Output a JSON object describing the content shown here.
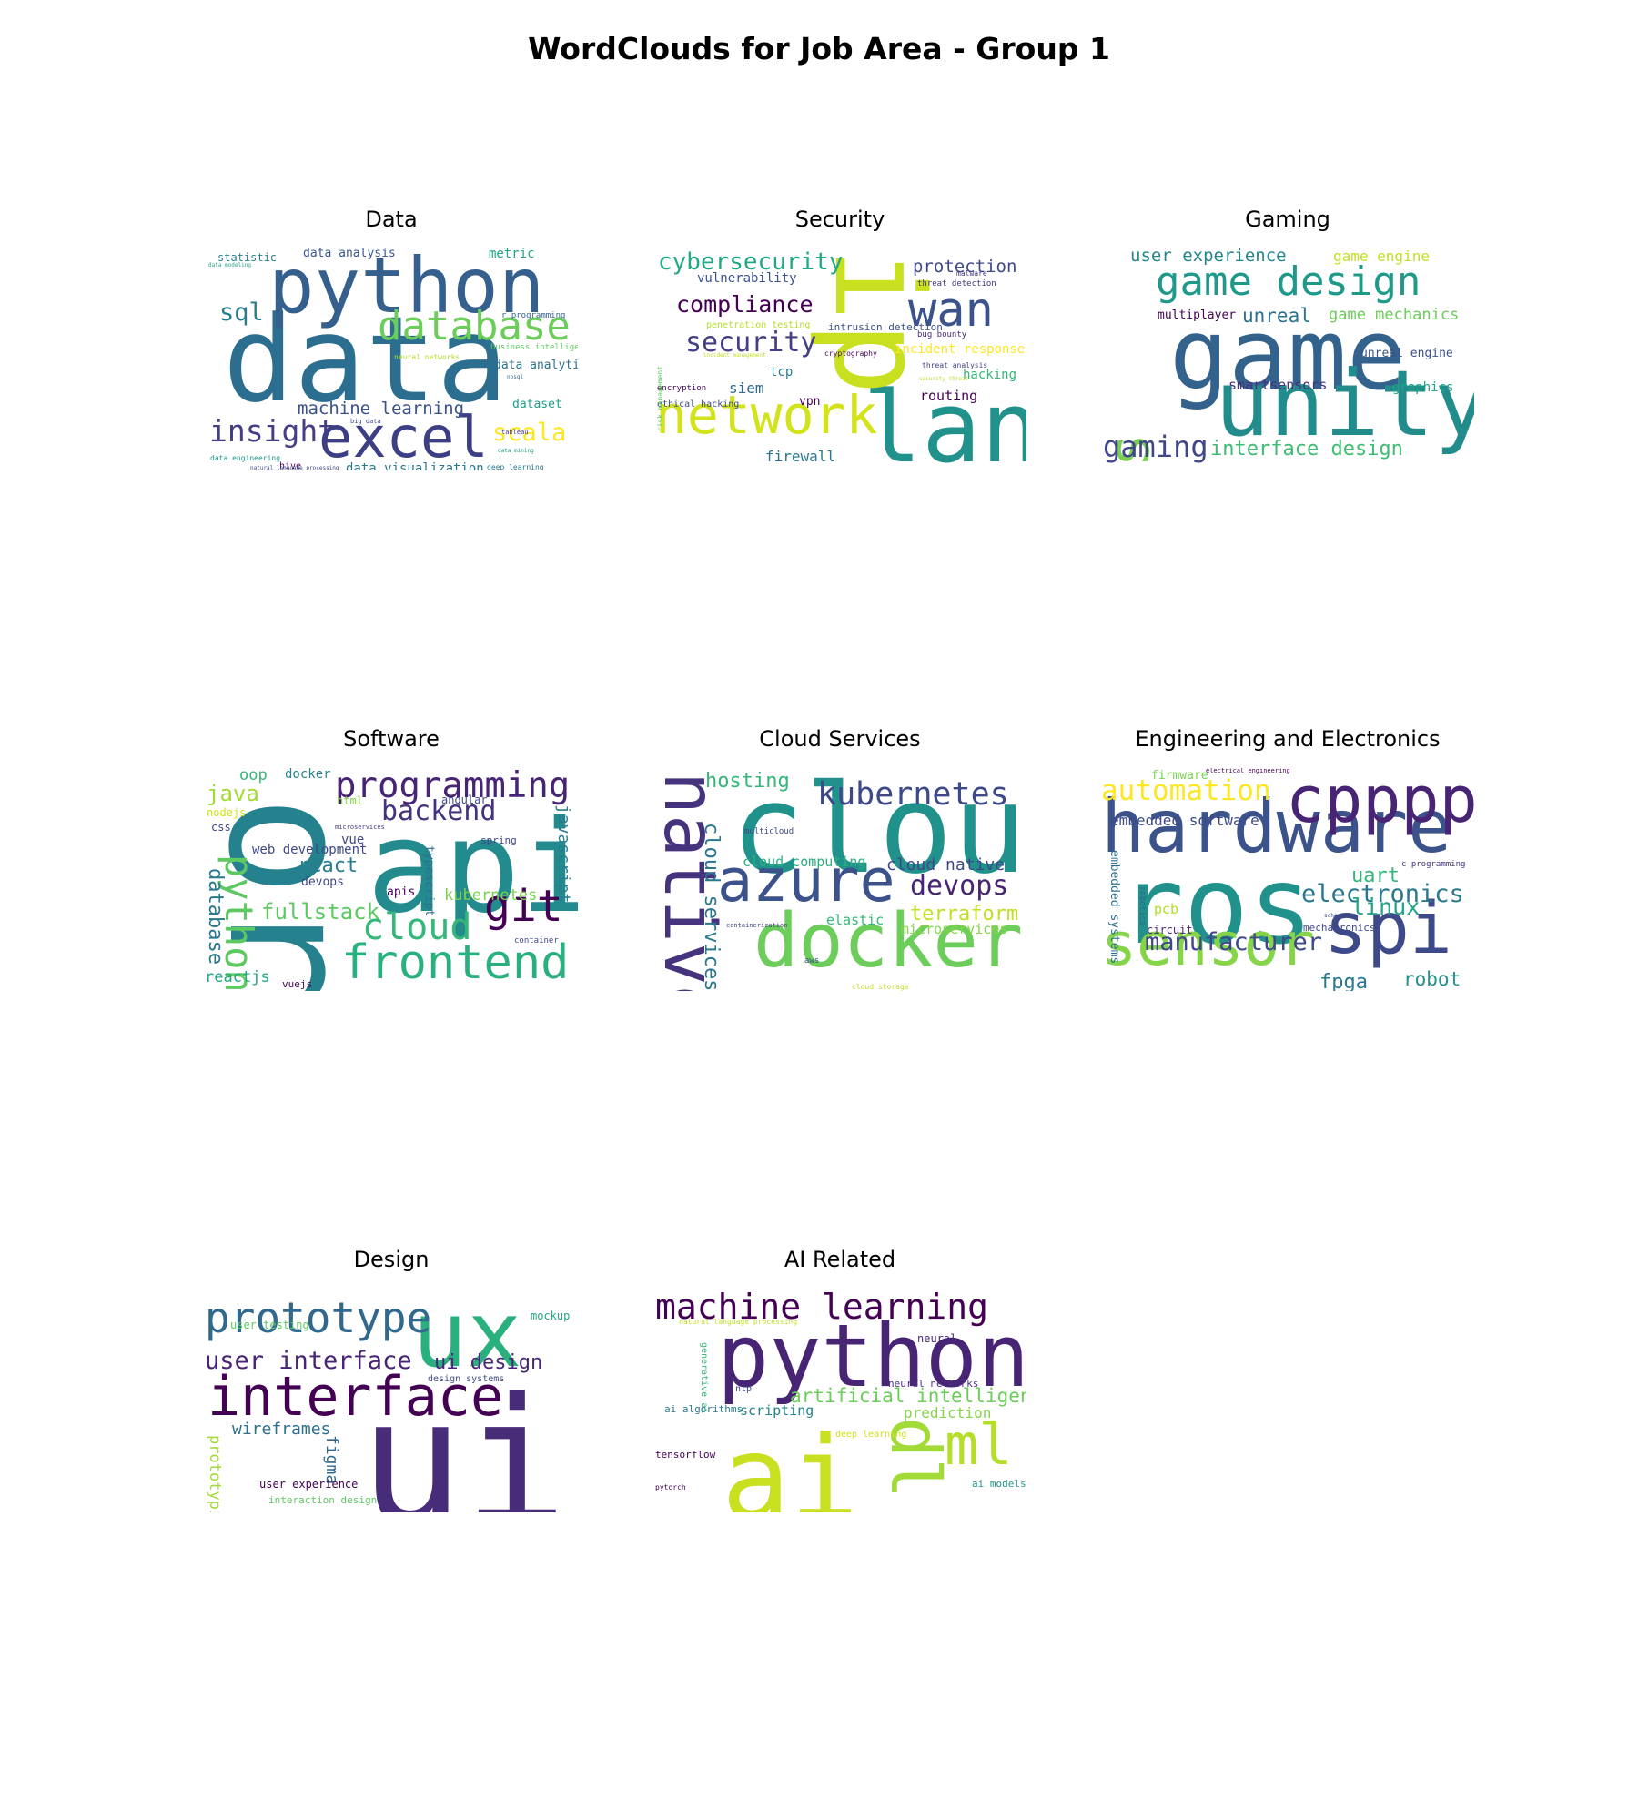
{
  "title": "WordClouds for Job Area - Group 1",
  "chart_data": [
    {
      "type": "wordcloud",
      "title": "Data",
      "words": [
        {
          "text": "data",
          "weight": 1.0,
          "color": "#2c6e8f"
        },
        {
          "text": "python",
          "weight": 0.72,
          "color": "#355f8d"
        },
        {
          "text": "excel",
          "weight": 0.55,
          "color": "#3d3f85"
        },
        {
          "text": "database",
          "weight": 0.42,
          "color": "#6ccd5a"
        },
        {
          "text": "insight",
          "weight": 0.3,
          "color": "#433e85"
        },
        {
          "text": "sql",
          "weight": 0.26,
          "color": "#287d8e"
        },
        {
          "text": "scala",
          "weight": 0.26,
          "color": "#fde725"
        },
        {
          "text": "machine learning",
          "weight": 0.2,
          "color": "#3b528b"
        },
        {
          "text": "data visualization",
          "weight": 0.13,
          "color": "#2a788e"
        },
        {
          "text": "data analysis",
          "weight": 0.12,
          "color": "#39568c"
        },
        {
          "text": "statistic",
          "weight": 0.11,
          "color": "#25858e"
        },
        {
          "text": "metric",
          "weight": 0.11,
          "color": "#20a386"
        },
        {
          "text": "data analytics",
          "weight": 0.11,
          "color": "#2d708e"
        },
        {
          "text": "dataset",
          "weight": 0.1,
          "color": "#1f9e89"
        },
        {
          "text": "business intelligence",
          "weight": 0.06,
          "color": "#5ec962"
        },
        {
          "text": "r programming",
          "weight": 0.06,
          "color": "#33638d"
        },
        {
          "text": "neural networks",
          "weight": 0.05,
          "color": "#b5de2b"
        },
        {
          "text": "data engineering",
          "weight": 0.05,
          "color": "#1f968b"
        },
        {
          "text": "hive",
          "weight": 0.06,
          "color": "#440154"
        },
        {
          "text": "deep learning",
          "weight": 0.05,
          "color": "#2a788e"
        },
        {
          "text": "data modeling",
          "weight": 0.04,
          "color": "#22a884"
        },
        {
          "text": "natural language processing",
          "weight": 0.04,
          "color": "#3e4989"
        },
        {
          "text": "tableau",
          "weight": 0.04,
          "color": "#46337e"
        },
        {
          "text": "data mining",
          "weight": 0.04,
          "color": "#1fa187"
        },
        {
          "text": "big data",
          "weight": 0.04,
          "color": "#404688"
        },
        {
          "text": "nosql",
          "weight": 0.04,
          "color": "#31688e"
        }
      ]
    },
    {
      "type": "wordcloud",
      "title": "Security",
      "words": [
        {
          "text": "lan",
          "weight": 1.0,
          "color": "#21918c"
        },
        {
          "text": "ip",
          "weight": 0.95,
          "color": "#c8e020"
        },
        {
          "text": "network",
          "weight": 0.62,
          "color": "#d2e21b"
        },
        {
          "text": "wan",
          "weight": 0.55,
          "color": "#3b528b"
        },
        {
          "text": "security",
          "weight": 0.33,
          "color": "#433e85"
        },
        {
          "text": "compliance",
          "weight": 0.3,
          "color": "#440154"
        },
        {
          "text": "cybersecurity",
          "weight": 0.3,
          "color": "#22a884"
        },
        {
          "text": "protection",
          "weight": 0.22,
          "color": "#3e4989"
        },
        {
          "text": "firewall",
          "weight": 0.18,
          "color": "#2a788e"
        },
        {
          "text": "siem",
          "weight": 0.18,
          "color": "#31688e"
        },
        {
          "text": "routing",
          "weight": 0.17,
          "color": "#440154"
        },
        {
          "text": "vulnerability",
          "weight": 0.15,
          "color": "#3b528b"
        },
        {
          "text": "hacking",
          "weight": 0.14,
          "color": "#35b779"
        },
        {
          "text": "incident response",
          "weight": 0.13,
          "color": "#fde725"
        },
        {
          "text": "tcp",
          "weight": 0.14,
          "color": "#287d8e"
        },
        {
          "text": "vpn",
          "weight": 0.13,
          "color": "#440154"
        },
        {
          "text": "intrusion detection",
          "weight": 0.1,
          "color": "#3b528b"
        },
        {
          "text": "penetration testing",
          "weight": 0.09,
          "color": "#b5de2b"
        },
        {
          "text": "ethical hacking",
          "weight": 0.08,
          "color": "#3e4989"
        },
        {
          "text": "encryption",
          "weight": 0.08,
          "color": "#440154"
        },
        {
          "text": "threat detection",
          "weight": 0.07,
          "color": "#46337e"
        },
        {
          "text": "bug bounty",
          "weight": 0.07,
          "color": "#482878"
        },
        {
          "text": "malware",
          "weight": 0.06,
          "color": "#443983"
        },
        {
          "text": "threat analysis",
          "weight": 0.06,
          "color": "#414487"
        },
        {
          "text": "cryptography",
          "weight": 0.06,
          "color": "#450457"
        },
        {
          "text": "risk management",
          "weight": 0.06,
          "color": "#5ec962"
        },
        {
          "text": "incident management",
          "weight": 0.05,
          "color": "#c2df23"
        },
        {
          "text": "security threat",
          "weight": 0.05,
          "color": "#b8de29"
        }
      ]
    },
    {
      "type": "wordcloud",
      "title": "Gaming",
      "words": [
        {
          "text": "game",
          "weight": 1.0,
          "color": "#33638d"
        },
        {
          "text": "unity",
          "weight": 0.9,
          "color": "#228c8d"
        },
        {
          "text": "games",
          "weight": 0.55,
          "color": "#7ad151"
        },
        {
          "text": "game design",
          "weight": 0.48,
          "color": "#1f9a8a"
        },
        {
          "text": "gaming",
          "weight": 0.3,
          "color": "#404688"
        },
        {
          "text": "interface design",
          "weight": 0.22,
          "color": "#3fbc73"
        },
        {
          "text": "unreal",
          "weight": 0.2,
          "color": "#2d708e"
        },
        {
          "text": "user experience",
          "weight": 0.18,
          "color": "#25858e"
        },
        {
          "text": "game mechanics",
          "weight": 0.16,
          "color": "#6ccd5a"
        },
        {
          "text": "game engine",
          "weight": 0.14,
          "color": "#c2df23"
        },
        {
          "text": "smartsensors",
          "weight": 0.15,
          "color": "#46337e"
        },
        {
          "text": "graphics",
          "weight": 0.14,
          "color": "#20a386"
        },
        {
          "text": "unreal engine",
          "weight": 0.13,
          "color": "#3b528b"
        },
        {
          "text": "multiplayer",
          "weight": 0.13,
          "color": "#440154"
        }
      ]
    },
    {
      "type": "wordcloud",
      "title": "Software",
      "words": [
        {
          "text": "orm",
          "weight": 1.0,
          "color": "#26818e"
        },
        {
          "text": "api",
          "weight": 0.95,
          "color": "#238a8d"
        },
        {
          "text": "frontend",
          "weight": 0.5,
          "color": "#2ab07f"
        },
        {
          "text": "programming",
          "weight": 0.4,
          "color": "#482475"
        },
        {
          "text": "git",
          "weight": 0.45,
          "color": "#440154"
        },
        {
          "text": "python",
          "weight": 0.45,
          "color": "#5ec962"
        },
        {
          "text": "cloud",
          "weight": 0.38,
          "color": "#35b779"
        },
        {
          "text": "backend",
          "weight": 0.32,
          "color": "#46337e"
        },
        {
          "text": "fullstack",
          "weight": 0.26,
          "color": "#5ec962"
        },
        {
          "text": "java",
          "weight": 0.25,
          "color": "#a2da37"
        },
        {
          "text": "database",
          "weight": 0.25,
          "color": "#2a788e"
        },
        {
          "text": "react",
          "weight": 0.24,
          "color": "#287d8e"
        },
        {
          "text": "javascript",
          "weight": 0.2,
          "color": "#287d8e"
        },
        {
          "text": "kubernetes",
          "weight": 0.18,
          "color": "#7ad151"
        },
        {
          "text": "web development",
          "weight": 0.15,
          "color": "#3e4989"
        },
        {
          "text": "reactjs",
          "weight": 0.17,
          "color": "#22a884"
        },
        {
          "text": "oop",
          "weight": 0.17,
          "color": "#35b779"
        },
        {
          "text": "typescript",
          "weight": 0.14,
          "color": "#2d708e"
        },
        {
          "text": "docker",
          "weight": 0.14,
          "color": "#25858e"
        },
        {
          "text": "vue",
          "weight": 0.14,
          "color": "#3e4989"
        },
        {
          "text": "apis",
          "weight": 0.13,
          "color": "#450457"
        },
        {
          "text": "devops",
          "weight": 0.13,
          "color": "#404688"
        },
        {
          "text": "html",
          "weight": 0.12,
          "color": "#86d549"
        },
        {
          "text": "css",
          "weight": 0.12,
          "color": "#404688"
        },
        {
          "text": "angular",
          "weight": 0.11,
          "color": "#3e4989"
        },
        {
          "text": "spring",
          "weight": 0.1,
          "color": "#3e4989"
        },
        {
          "text": "nodejs",
          "weight": 0.11,
          "color": "#d2e21b"
        },
        {
          "text": "vuejs",
          "weight": 0.11,
          "color": "#440154"
        },
        {
          "text": "container",
          "weight": 0.08,
          "color": "#3e4989"
        },
        {
          "text": "microservices",
          "weight": 0.06,
          "color": "#443983"
        }
      ]
    },
    {
      "type": "wordcloud",
      "title": "Cloud Services",
      "words": [
        {
          "text": "cloud",
          "weight": 1.0,
          "color": "#21918c"
        },
        {
          "text": "docker",
          "weight": 0.85,
          "color": "#6ccd5a"
        },
        {
          "text": "azure",
          "weight": 0.7,
          "color": "#3b528b"
        },
        {
          "text": "native",
          "weight": 0.68,
          "color": "#46337e"
        },
        {
          "text": "kubernetes",
          "weight": 0.34,
          "color": "#3e4989"
        },
        {
          "text": "devops",
          "weight": 0.3,
          "color": "#482475"
        },
        {
          "text": "cloud services",
          "weight": 0.22,
          "color": "#2a788e"
        },
        {
          "text": "terraform",
          "weight": 0.24,
          "color": "#c2df23"
        },
        {
          "text": "hosting",
          "weight": 0.22,
          "color": "#35b779"
        },
        {
          "text": "cloud native",
          "weight": 0.2,
          "color": "#3e4989"
        },
        {
          "text": "cloud computing",
          "weight": 0.16,
          "color": "#2ab07f"
        },
        {
          "text": "elastic",
          "weight": 0.15,
          "color": "#35b779"
        },
        {
          "text": "microservices",
          "weight": 0.15,
          "color": "#86d549"
        },
        {
          "text": "multicloud",
          "weight": 0.07,
          "color": "#3e4989"
        },
        {
          "text": "aws",
          "weight": 0.07,
          "color": "#3b528b"
        },
        {
          "text": "containerization",
          "weight": 0.05,
          "color": "#404688"
        },
        {
          "text": "cloud storage",
          "weight": 0.06,
          "color": "#c2df23"
        }
      ]
    },
    {
      "type": "wordcloud",
      "title": "Engineering and Electronics",
      "words": [
        {
          "text": "ros",
          "weight": 1.0,
          "color": "#21918c"
        },
        {
          "text": "hardware",
          "weight": 0.8,
          "color": "#3b528b"
        },
        {
          "text": "spi",
          "weight": 0.7,
          "color": "#3e4989"
        },
        {
          "text": "sensor",
          "weight": 0.65,
          "color": "#86d549"
        },
        {
          "text": "cpppp",
          "weight": 0.6,
          "color": "#482475"
        },
        {
          "text": "automation",
          "weight": 0.3,
          "color": "#fde725"
        },
        {
          "text": "electronics",
          "weight": 0.28,
          "color": "#2a788e"
        },
        {
          "text": "manufacturer",
          "weight": 0.28,
          "color": "#3e4989"
        },
        {
          "text": "linux",
          "weight": 0.25,
          "color": "#20a386"
        },
        {
          "text": "uart",
          "weight": 0.22,
          "color": "#35b779"
        },
        {
          "text": "fpga",
          "weight": 0.22,
          "color": "#2a788e"
        },
        {
          "text": "robot",
          "weight": 0.22,
          "color": "#21918c"
        },
        {
          "text": "embedded software",
          "weight": 0.16,
          "color": "#3e4989"
        },
        {
          "text": "embedded systems",
          "weight": 0.13,
          "color": "#2d708e"
        },
        {
          "text": "pcb",
          "weight": 0.15,
          "color": "#b5de2b"
        },
        {
          "text": "firmware",
          "weight": 0.13,
          "color": "#7ad151"
        },
        {
          "text": "circuit",
          "weight": 0.12,
          "color": "#482878"
        },
        {
          "text": "mechatronics",
          "weight": 0.11,
          "color": "#3e4989"
        },
        {
          "text": "robotics",
          "weight": 0.09,
          "color": "#31688e"
        },
        {
          "text": "c programming",
          "weight": 0.08,
          "color": "#46337e"
        },
        {
          "text": "schematics",
          "weight": 0.06,
          "color": "#3e4989"
        },
        {
          "text": "electrical engineering",
          "weight": 0.06,
          "color": "#440154"
        }
      ]
    },
    {
      "type": "wordcloud",
      "title": "Design",
      "words": [
        {
          "text": "ui",
          "weight": 1.0,
          "color": "#472c7a"
        },
        {
          "text": "ux",
          "weight": 0.75,
          "color": "#2ab07f"
        },
        {
          "text": "interface",
          "weight": 0.5,
          "color": "#440154"
        },
        {
          "text": "prototype",
          "weight": 0.42,
          "color": "#31688e"
        },
        {
          "text": "user interface",
          "weight": 0.28,
          "color": "#482475"
        },
        {
          "text": "ui design",
          "weight": 0.24,
          "color": "#482878"
        },
        {
          "text": "wireframes",
          "weight": 0.2,
          "color": "#2d708e"
        },
        {
          "text": "figma",
          "weight": 0.18,
          "color": "#31688e"
        },
        {
          "text": "prototyping",
          "weight": 0.17,
          "color": "#a2da37"
        },
        {
          "text": "mockup",
          "weight": 0.12,
          "color": "#22a884"
        },
        {
          "text": "user testing",
          "weight": 0.11,
          "color": "#5ec962"
        },
        {
          "text": "user experience",
          "weight": 0.12,
          "color": "#440154"
        },
        {
          "text": "interaction design",
          "weight": 0.1,
          "color": "#5ec962"
        },
        {
          "text": "design systems",
          "weight": 0.09,
          "color": "#3e4989"
        }
      ]
    },
    {
      "type": "wordcloud",
      "title": "AI Related",
      "words": [
        {
          "text": "ai",
          "weight": 1.0,
          "color": "#c8e020"
        },
        {
          "text": "python",
          "weight": 0.75,
          "color": "#482475"
        },
        {
          "text": "dl",
          "weight": 0.55,
          "color": "#a2da37"
        },
        {
          "text": "ml",
          "weight": 0.5,
          "color": "#b5de2b"
        },
        {
          "text": "machine learning",
          "weight": 0.4,
          "color": "#440154"
        },
        {
          "text": "artificial intelligence",
          "weight": 0.22,
          "color": "#6ccd5a"
        },
        {
          "text": "prediction",
          "weight": 0.18,
          "color": "#86d549"
        },
        {
          "text": "scripting",
          "weight": 0.16,
          "color": "#25858e"
        },
        {
          "text": "neural",
          "weight": 0.12,
          "color": "#482878"
        },
        {
          "text": "neural networks",
          "weight": 0.1,
          "color": "#46337e"
        },
        {
          "text": "generative ai",
          "weight": 0.09,
          "color": "#35b779"
        },
        {
          "text": "ai algorithms",
          "weight": 0.09,
          "color": "#2a788e"
        },
        {
          "text": "tensorflow",
          "weight": 0.1,
          "color": "#440154"
        },
        {
          "text": "nlp",
          "weight": 0.08,
          "color": "#3e4989"
        },
        {
          "text": "deep learning",
          "weight": 0.08,
          "color": "#d2e21b"
        },
        {
          "text": "ai models",
          "weight": 0.09,
          "color": "#1f968b"
        },
        {
          "text": "natural language processing",
          "weight": 0.07,
          "color": "#c2df23"
        },
        {
          "text": "pytorch",
          "weight": 0.07,
          "color": "#440154"
        }
      ]
    }
  ]
}
